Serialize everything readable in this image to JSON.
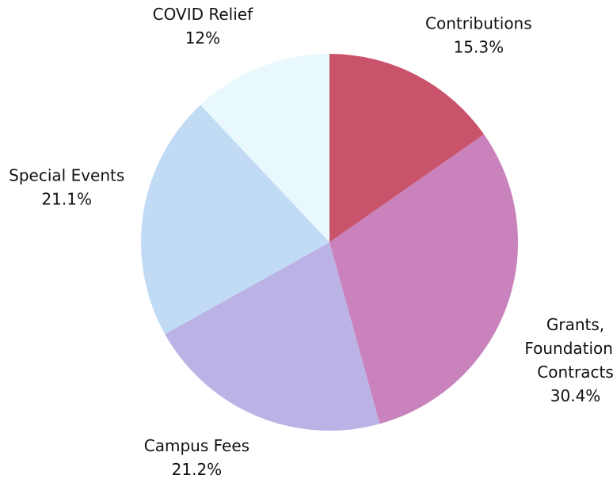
{
  "chart_data": {
    "type": "pie",
    "categories": [
      "Contributions",
      "Grants, Foundations, Contracts",
      "Campus Fees",
      "Special Events",
      "COVID Relief"
    ],
    "values": [
      15.3,
      30.4,
      21.2,
      21.1,
      12
    ],
    "value_labels": [
      "15.3%",
      "30.4%",
      "21.2%",
      "21.1%",
      "12%"
    ],
    "colors": [
      "#c9536b",
      "#c982bb",
      "#bbb3e6",
      "#c2dbf5",
      "#e8f8fd"
    ]
  }
}
